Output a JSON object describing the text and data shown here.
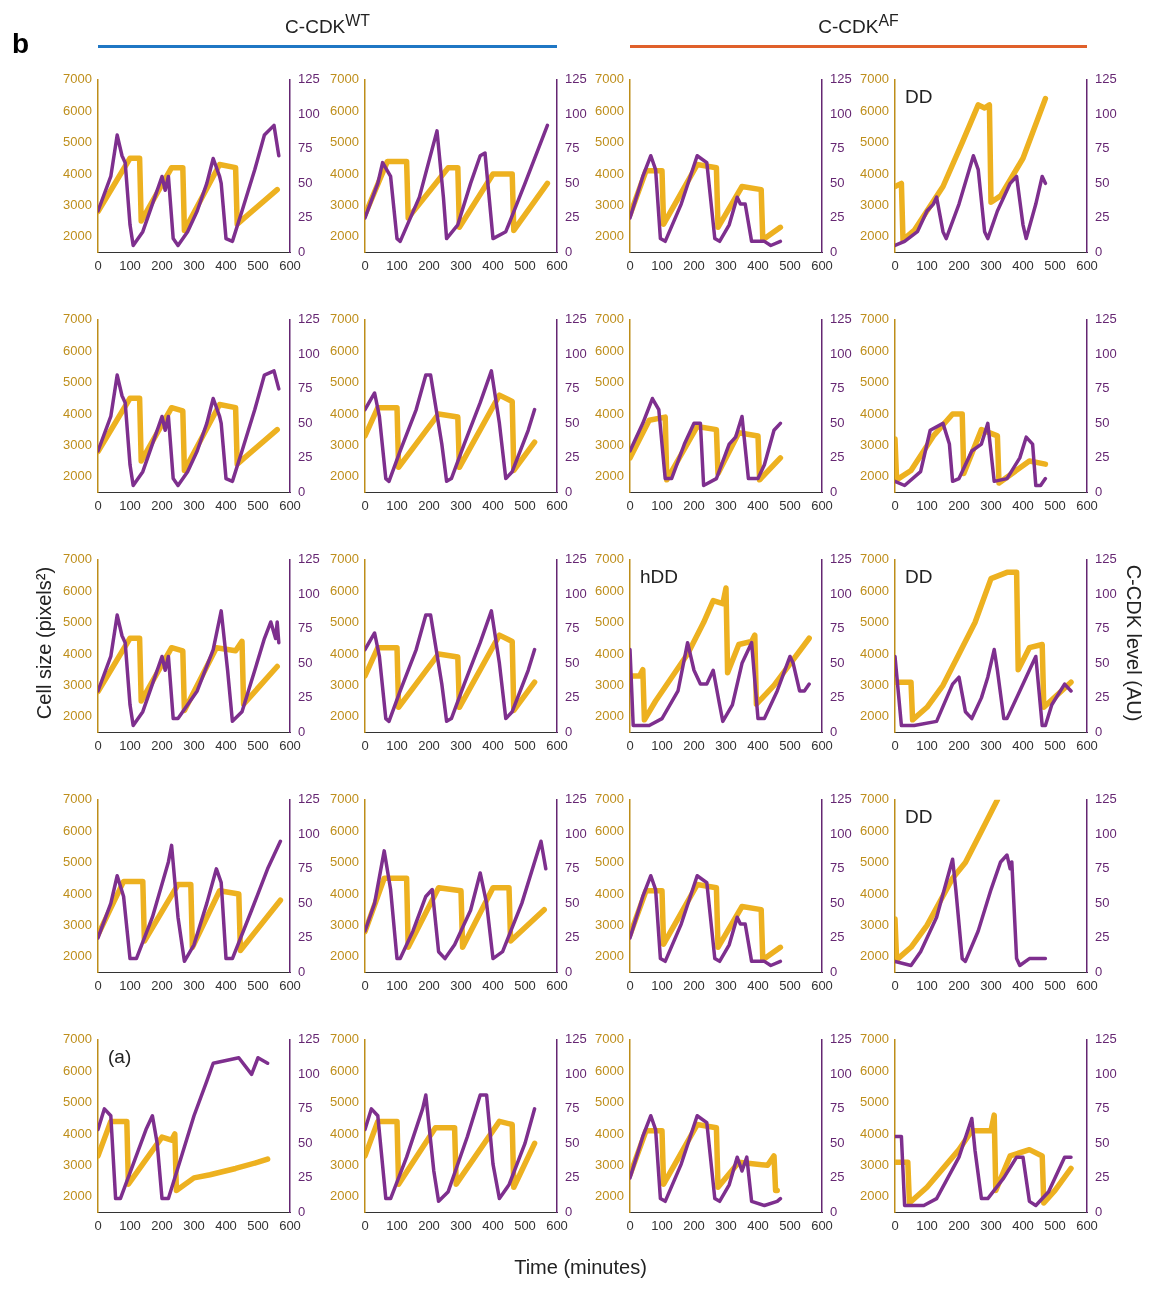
{
  "chart_data": [
    {
      "type": "line",
      "title": "C-CDK$^{WT}$",
      "annotations": [
        "b"
      ],
      "xlim": [
        0,
        600
      ],
      "xticks": [
        0,
        100,
        200,
        300,
        400,
        500,
        600
      ],
      "ylim": [
        1500,
        7000
      ],
      "yticks": [
        2000,
        3000,
        4000,
        5000,
        6000,
        7000
      ],
      "y2lim": [
        0,
        125
      ],
      "y2ticks": [
        0,
        25,
        50,
        75,
        100,
        125
      ],
      "marker": "none",
      "series": [
        {
          "color": "#edb120",
          "x": [
            0,
            100,
            130,
            135,
            230,
            265,
            270,
            380,
            430,
            435,
            560
          ],
          "values": [
            2800,
            4500,
            4500,
            2500,
            4200,
            4200,
            2200,
            4300,
            4200,
            2400,
            3500
          ]
        },
        {
          "color": "#7e2f8e",
          "axis": "y2",
          "x": [
            0,
            40,
            60,
            75,
            85,
            100,
            110,
            140,
            170,
            200,
            210,
            220,
            235,
            250,
            280,
            310,
            340,
            360,
            380,
            385,
            400,
            420,
            450,
            490,
            520,
            550,
            565
          ],
          "values": [
            30,
            55,
            85,
            70,
            65,
            20,
            5,
            15,
            35,
            55,
            45,
            55,
            10,
            5,
            15,
            30,
            50,
            68,
            55,
            50,
            10,
            8,
            30,
            60,
            85,
            92,
            70
          ]
        }
      ]
    },
    {
      "type": "line",
      "xlim": [
        0,
        600
      ],
      "xticks": [
        0,
        100,
        200,
        300,
        400,
        500,
        600
      ],
      "ylim": [
        1500,
        7000
      ],
      "yticks": [
        2000,
        3000,
        4000,
        5000,
        6000,
        7000
      ],
      "y2lim": [
        0,
        125
      ],
      "y2ticks": [
        0,
        25,
        50,
        75,
        100,
        125
      ],
      "marker": "none",
      "series": [
        {
          "color": "#edb120",
          "x": [
            0,
            70,
            130,
            135,
            260,
            290,
            295,
            400,
            460,
            465,
            570
          ],
          "values": [
            2700,
            4400,
            4400,
            2600,
            4200,
            4200,
            2300,
            4000,
            4000,
            2200,
            3700
          ]
        },
        {
          "color": "#7e2f8e",
          "axis": "y2",
          "x": [
            0,
            40,
            55,
            80,
            100,
            110,
            170,
            210,
            225,
            245,
            255,
            290,
            330,
            360,
            375,
            400,
            440,
            500,
            570
          ],
          "values": [
            25,
            50,
            65,
            55,
            10,
            8,
            40,
            75,
            88,
            40,
            10,
            20,
            50,
            70,
            72,
            10,
            15,
            50,
            92
          ]
        }
      ]
    },
    {
      "type": "line",
      "title": "C-CDK$^{AF}$",
      "xlim": [
        0,
        600
      ],
      "xticks": [
        0,
        100,
        200,
        300,
        400,
        500,
        600
      ],
      "ylim": [
        1500,
        7000
      ],
      "yticks": [
        2000,
        3000,
        4000,
        5000,
        6000,
        7000
      ],
      "y2lim": [
        0,
        125
      ],
      "y2ticks": [
        0,
        25,
        50,
        75,
        100,
        125
      ],
      "marker": "none",
      "series": [
        {
          "color": "#edb120",
          "x": [
            0,
            50,
            100,
            105,
            210,
            270,
            275,
            350,
            410,
            415,
            470
          ],
          "values": [
            2700,
            4100,
            4100,
            2400,
            4300,
            4200,
            2300,
            3600,
            3500,
            1900,
            2300
          ]
        },
        {
          "color": "#7e2f8e",
          "axis": "y2",
          "x": [
            0,
            40,
            65,
            80,
            95,
            110,
            160,
            210,
            240,
            265,
            280,
            310,
            335,
            345,
            360,
            380,
            420,
            440,
            470
          ],
          "values": [
            25,
            55,
            70,
            60,
            10,
            8,
            35,
            70,
            65,
            10,
            8,
            20,
            40,
            35,
            35,
            8,
            8,
            5,
            8
          ]
        }
      ]
    },
    {
      "type": "line",
      "annotations": [
        "DD"
      ],
      "xlim": [
        0,
        600
      ],
      "xticks": [
        0,
        100,
        200,
        300,
        400,
        500,
        600
      ],
      "ylim": [
        1500,
        7000
      ],
      "yticks": [
        2000,
        3000,
        4000,
        5000,
        6000,
        7000
      ],
      "y2lim": [
        0,
        125
      ],
      "y2ticks": [
        0,
        25,
        50,
        75,
        100,
        125
      ],
      "marker": "none",
      "series": [
        {
          "color": "#edb120",
          "x": [
            0,
            20,
            25,
            60,
            150,
            210,
            260,
            280,
            295,
            300,
            330,
            400,
            470
          ],
          "values": [
            3600,
            3700,
            1900,
            2200,
            3600,
            5000,
            6200,
            6100,
            6200,
            3100,
            3300,
            4500,
            6400
          ]
        },
        {
          "color": "#7e2f8e",
          "axis": "y2",
          "x": [
            0,
            30,
            70,
            100,
            120,
            130,
            150,
            160,
            200,
            245,
            260,
            280,
            290,
            320,
            360,
            380,
            400,
            410,
            440,
            460,
            470
          ],
          "values": [
            5,
            8,
            15,
            30,
            35,
            40,
            15,
            10,
            35,
            70,
            60,
            15,
            10,
            30,
            50,
            55,
            20,
            10,
            35,
            55,
            50
          ]
        }
      ]
    },
    {
      "type": "line",
      "xlim": [
        0,
        600
      ],
      "xticks": [
        0,
        100,
        200,
        300,
        400,
        500,
        600
      ],
      "ylim": [
        1500,
        7000
      ],
      "yticks": [
        2000,
        3000,
        4000,
        5000,
        6000,
        7000
      ],
      "y2lim": [
        0,
        125
      ],
      "y2ticks": [
        0,
        25,
        50,
        75,
        100,
        125
      ],
      "marker": "none",
      "series": [
        {
          "color": "#edb120",
          "x": [
            0,
            100,
            130,
            135,
            230,
            265,
            270,
            380,
            430,
            435,
            560
          ],
          "values": [
            2800,
            4500,
            4500,
            2500,
            4200,
            4100,
            2200,
            4300,
            4200,
            2400,
            3500
          ]
        },
        {
          "color": "#7e2f8e",
          "axis": "y2",
          "x": [
            0,
            40,
            60,
            75,
            85,
            100,
            110,
            140,
            170,
            200,
            210,
            220,
            235,
            250,
            280,
            310,
            340,
            360,
            380,
            385,
            400,
            420,
            450,
            490,
            520,
            550,
            565
          ],
          "values": [
            30,
            55,
            85,
            70,
            65,
            20,
            5,
            15,
            35,
            55,
            45,
            55,
            10,
            5,
            15,
            30,
            50,
            68,
            55,
            50,
            10,
            8,
            30,
            60,
            85,
            88,
            75
          ]
        }
      ]
    },
    {
      "type": "line",
      "xlim": [
        0,
        600
      ],
      "xticks": [
        0,
        100,
        200,
        300,
        400,
        500,
        600
      ],
      "ylim": [
        1500,
        7000
      ],
      "yticks": [
        2000,
        3000,
        4000,
        5000,
        6000,
        7000
      ],
      "y2lim": [
        0,
        125
      ],
      "y2ticks": [
        0,
        25,
        50,
        75,
        100,
        125
      ],
      "marker": "none",
      "series": [
        {
          "color": "#edb120",
          "x": [
            0,
            40,
            100,
            105,
            230,
            290,
            295,
            420,
            460,
            465,
            530
          ],
          "values": [
            3300,
            4200,
            4200,
            2300,
            4000,
            3900,
            2300,
            4600,
            4400,
            2200,
            3100
          ]
        },
        {
          "color": "#7e2f8e",
          "axis": "y2",
          "x": [
            0,
            30,
            45,
            65,
            75,
            110,
            160,
            190,
            205,
            240,
            255,
            270,
            310,
            360,
            395,
            420,
            440,
            460,
            510,
            530
          ],
          "values": [
            60,
            72,
            55,
            10,
            8,
            30,
            60,
            85,
            85,
            35,
            8,
            10,
            35,
            65,
            88,
            50,
            10,
            15,
            45,
            60
          ]
        }
      ]
    },
    {
      "type": "line",
      "xlim": [
        0,
        600
      ],
      "xticks": [
        0,
        100,
        200,
        300,
        400,
        500,
        600
      ],
      "ylim": [
        1500,
        7000
      ],
      "yticks": [
        2000,
        3000,
        4000,
        5000,
        6000,
        7000
      ],
      "y2lim": [
        0,
        125
      ],
      "y2ticks": [
        0,
        25,
        50,
        75,
        100,
        125
      ],
      "marker": "none",
      "series": [
        {
          "color": "#edb120",
          "x": [
            0,
            60,
            110,
            115,
            210,
            270,
            275,
            340,
            400,
            405,
            470
          ],
          "values": [
            2600,
            3800,
            3900,
            1900,
            3600,
            3500,
            2100,
            3400,
            3300,
            1900,
            2600
          ]
        },
        {
          "color": "#7e2f8e",
          "axis": "y2",
          "x": [
            0,
            40,
            70,
            90,
            110,
            130,
            170,
            200,
            220,
            230,
            270,
            310,
            330,
            350,
            370,
            400,
            420,
            450,
            470
          ],
          "values": [
            30,
            50,
            68,
            60,
            10,
            10,
            35,
            50,
            50,
            5,
            10,
            35,
            40,
            55,
            10,
            10,
            20,
            45,
            50
          ]
        }
      ]
    },
    {
      "type": "line",
      "xlim": [
        0,
        600
      ],
      "xticks": [
        0,
        100,
        200,
        300,
        400,
        500,
        600
      ],
      "ylim": [
        1500,
        7000
      ],
      "yticks": [
        2000,
        3000,
        4000,
        5000,
        6000,
        7000
      ],
      "y2lim": [
        0,
        125
      ],
      "y2ticks": [
        0,
        25,
        50,
        75,
        100,
        125
      ],
      "marker": "none",
      "series": [
        {
          "color": "#edb120",
          "x": [
            0,
            5,
            50,
            120,
            180,
            210,
            215,
            270,
            320,
            325,
            420,
            470
          ],
          "values": [
            3200,
            1900,
            2200,
            3300,
            4000,
            4000,
            2100,
            3500,
            3300,
            1800,
            2500,
            2400
          ]
        },
        {
          "color": "#7e2f8e",
          "axis": "y2",
          "x": [
            0,
            30,
            80,
            110,
            150,
            170,
            180,
            200,
            240,
            270,
            290,
            310,
            350,
            390,
            410,
            430,
            440,
            455,
            470
          ],
          "values": [
            8,
            5,
            15,
            45,
            50,
            35,
            8,
            10,
            30,
            35,
            50,
            8,
            10,
            25,
            40,
            35,
            5,
            5,
            10
          ]
        }
      ]
    },
    {
      "type": "line",
      "ylabel": "Cell size (pixels²)",
      "xlim": [
        0,
        600
      ],
      "xticks": [
        0,
        100,
        200,
        300,
        400,
        500,
        600
      ],
      "ylim": [
        1500,
        7000
      ],
      "yticks": [
        2000,
        3000,
        4000,
        5000,
        6000,
        7000
      ],
      "y2lim": [
        0,
        125
      ],
      "y2ticks": [
        0,
        25,
        50,
        75,
        100,
        125
      ],
      "marker": "none",
      "series": [
        {
          "color": "#edb120",
          "x": [
            0,
            100,
            130,
            135,
            230,
            265,
            270,
            370,
            430,
            450,
            455,
            560
          ],
          "values": [
            2800,
            4500,
            4500,
            2500,
            4200,
            4100,
            2200,
            4200,
            4100,
            4400,
            2400,
            3600
          ]
        },
        {
          "color": "#7e2f8e",
          "axis": "y2",
          "x": [
            0,
            40,
            60,
            75,
            85,
            100,
            110,
            140,
            170,
            200,
            210,
            220,
            235,
            250,
            310,
            360,
            385,
            405,
            420,
            450,
            490,
            520,
            540,
            555,
            560,
            565
          ],
          "values": [
            30,
            55,
            85,
            70,
            65,
            20,
            5,
            15,
            35,
            55,
            45,
            55,
            10,
            10,
            30,
            60,
            88,
            45,
            8,
            15,
            45,
            68,
            80,
            68,
            80,
            65
          ]
        }
      ]
    },
    {
      "type": "line",
      "xlim": [
        0,
        600
      ],
      "xticks": [
        0,
        100,
        200,
        300,
        400,
        500,
        600
      ],
      "ylim": [
        1500,
        7000
      ],
      "yticks": [
        2000,
        3000,
        4000,
        5000,
        6000,
        7000
      ],
      "y2lim": [
        0,
        125
      ],
      "y2ticks": [
        0,
        25,
        50,
        75,
        100,
        125
      ],
      "marker": "none",
      "series": [
        {
          "color": "#edb120",
          "x": [
            0,
            40,
            100,
            105,
            230,
            290,
            295,
            420,
            460,
            465,
            530
          ],
          "values": [
            3300,
            4200,
            4200,
            2300,
            4000,
            3900,
            2300,
            4600,
            4400,
            2200,
            3100
          ]
        },
        {
          "color": "#7e2f8e",
          "axis": "y2",
          "x": [
            0,
            30,
            45,
            65,
            75,
            110,
            160,
            190,
            205,
            240,
            255,
            270,
            310,
            360,
            395,
            420,
            440,
            460,
            510,
            530
          ],
          "values": [
            60,
            72,
            55,
            10,
            8,
            30,
            60,
            85,
            85,
            35,
            8,
            10,
            35,
            65,
            88,
            50,
            10,
            15,
            45,
            60
          ]
        }
      ]
    },
    {
      "type": "line",
      "annotations": [
        "hDD"
      ],
      "xlim": [
        0,
        600
      ],
      "xticks": [
        0,
        100,
        200,
        300,
        400,
        500,
        600
      ],
      "ylim": [
        1500,
        7000
      ],
      "yticks": [
        2000,
        3000,
        4000,
        5000,
        6000,
        7000
      ],
      "y2lim": [
        0,
        125
      ],
      "y2ticks": [
        0,
        25,
        50,
        75,
        100,
        125
      ],
      "marker": "none",
      "series": [
        {
          "color": "#edb120",
          "x": [
            0,
            30,
            40,
            45,
            80,
            180,
            230,
            260,
            290,
            300,
            305,
            340,
            380,
            390,
            395,
            450,
            560
          ],
          "values": [
            3300,
            3300,
            3500,
            1900,
            2500,
            4000,
            5000,
            5700,
            5600,
            6100,
            3400,
            4300,
            4400,
            4600,
            2400,
            3000,
            4500
          ]
        },
        {
          "color": "#7e2f8e",
          "axis": "y2",
          "x": [
            0,
            10,
            60,
            100,
            150,
            180,
            200,
            220,
            240,
            260,
            280,
            290,
            320,
            350,
            380,
            400,
            420,
            460,
            500,
            510,
            530,
            545,
            560
          ],
          "values": [
            60,
            5,
            5,
            10,
            30,
            65,
            45,
            35,
            35,
            45,
            20,
            8,
            20,
            50,
            65,
            10,
            10,
            30,
            55,
            50,
            30,
            30,
            35
          ]
        }
      ]
    },
    {
      "type": "line",
      "annotations": [
        "DD"
      ],
      "y2label": "C-CDK level (AU)",
      "xlim": [
        0,
        600
      ],
      "xticks": [
        0,
        100,
        200,
        300,
        400,
        500,
        600
      ],
      "ylim": [
        1500,
        7000
      ],
      "yticks": [
        2000,
        3000,
        4000,
        5000,
        6000,
        7000
      ],
      "y2lim": [
        0,
        125
      ],
      "y2ticks": [
        0,
        25,
        50,
        75,
        100,
        125
      ],
      "marker": "none",
      "series": [
        {
          "color": "#edb120",
          "x": [
            0,
            50,
            55,
            100,
            150,
            200,
            250,
            300,
            350,
            380,
            385,
            420,
            460,
            465,
            550
          ],
          "values": [
            3100,
            3100,
            1900,
            2300,
            3000,
            4000,
            5000,
            6400,
            6600,
            6600,
            3500,
            4200,
            4300,
            2300,
            3100
          ]
        },
        {
          "color": "#7e2f8e",
          "axis": "y2",
          "x": [
            0,
            20,
            60,
            130,
            180,
            200,
            220,
            240,
            270,
            290,
            310,
            320,
            340,
            350,
            390,
            430,
            440,
            460,
            470,
            490,
            530,
            550
          ],
          "values": [
            55,
            5,
            5,
            8,
            35,
            40,
            15,
            10,
            25,
            40,
            60,
            45,
            10,
            10,
            30,
            50,
            55,
            5,
            5,
            20,
            35,
            30
          ]
        }
      ]
    },
    {
      "type": "line",
      "xlim": [
        0,
        600
      ],
      "xticks": [
        0,
        100,
        200,
        300,
        400,
        500,
        600
      ],
      "ylim": [
        1500,
        7000
      ],
      "yticks": [
        2000,
        3000,
        4000,
        5000,
        6000,
        7000
      ],
      "y2lim": [
        0,
        125
      ],
      "y2ticks": [
        0,
        25,
        50,
        75,
        100,
        125
      ],
      "marker": "none",
      "series": [
        {
          "color": "#edb120",
          "x": [
            0,
            80,
            140,
            145,
            250,
            290,
            295,
            380,
            440,
            445,
            570
          ],
          "values": [
            2700,
            4400,
            4400,
            2500,
            4300,
            4300,
            2300,
            4100,
            4000,
            2200,
            3800
          ]
        },
        {
          "color": "#7e2f8e",
          "axis": "y2",
          "x": [
            0,
            40,
            60,
            80,
            100,
            120,
            170,
            220,
            230,
            250,
            270,
            300,
            340,
            370,
            385,
            400,
            420,
            480,
            530,
            570
          ],
          "values": [
            25,
            50,
            70,
            55,
            10,
            10,
            40,
            80,
            92,
            40,
            8,
            20,
            50,
            75,
            65,
            10,
            10,
            45,
            75,
            95
          ]
        }
      ]
    },
    {
      "type": "line",
      "xlim": [
        0,
        600
      ],
      "xticks": [
        0,
        100,
        200,
        300,
        400,
        500,
        600
      ],
      "ylim": [
        1500,
        7000
      ],
      "yticks": [
        2000,
        3000,
        4000,
        5000,
        6000,
        7000
      ],
      "y2lim": [
        0,
        125
      ],
      "y2ticks": [
        0,
        25,
        50,
        75,
        100,
        125
      ],
      "marker": "none",
      "series": [
        {
          "color": "#edb120",
          "x": [
            0,
            60,
            130,
            135,
            230,
            300,
            305,
            400,
            450,
            455,
            560
          ],
          "values": [
            2800,
            4500,
            4500,
            2300,
            4200,
            4100,
            2300,
            4200,
            4200,
            2500,
            3500
          ]
        },
        {
          "color": "#7e2f8e",
          "axis": "y2",
          "x": [
            0,
            30,
            60,
            80,
            100,
            110,
            150,
            190,
            210,
            230,
            250,
            280,
            330,
            360,
            380,
            400,
            430,
            490,
            550,
            565
          ],
          "values": [
            30,
            50,
            88,
            60,
            10,
            10,
            30,
            55,
            60,
            15,
            10,
            20,
            45,
            72,
            50,
            10,
            15,
            50,
            95,
            75
          ]
        }
      ]
    },
    {
      "type": "line",
      "xlim": [
        0,
        600
      ],
      "xticks": [
        0,
        100,
        200,
        300,
        400,
        500,
        600
      ],
      "ylim": [
        1500,
        7000
      ],
      "yticks": [
        2000,
        3000,
        4000,
        5000,
        6000,
        7000
      ],
      "y2lim": [
        0,
        125
      ],
      "y2ticks": [
        0,
        25,
        50,
        75,
        100,
        125
      ],
      "marker": "none",
      "series": [
        {
          "color": "#edb120",
          "x": [
            0,
            50,
            100,
            105,
            210,
            270,
            275,
            350,
            410,
            415,
            470
          ],
          "values": [
            2700,
            4100,
            4100,
            2400,
            4300,
            4200,
            2300,
            3600,
            3500,
            1900,
            2300
          ]
        },
        {
          "color": "#7e2f8e",
          "axis": "y2",
          "x": [
            0,
            40,
            65,
            80,
            95,
            110,
            160,
            210,
            240,
            265,
            280,
            310,
            335,
            345,
            360,
            380,
            420,
            440,
            470
          ],
          "values": [
            25,
            55,
            70,
            60,
            10,
            8,
            35,
            70,
            65,
            10,
            8,
            20,
            40,
            35,
            35,
            8,
            8,
            5,
            8
          ]
        }
      ]
    },
    {
      "type": "line",
      "annotations": [
        "DD"
      ],
      "xlim": [
        0,
        600
      ],
      "xticks": [
        0,
        100,
        200,
        300,
        400,
        500,
        600
      ],
      "ylim": [
        1500,
        7000
      ],
      "yticks": [
        2000,
        3000,
        4000,
        5000,
        6000,
        7000
      ],
      "y2lim": [
        0,
        125
      ],
      "y2ticks": [
        0,
        25,
        50,
        75,
        100,
        125
      ],
      "marker": "none",
      "series": [
        {
          "color": "#edb120",
          "x": [
            0,
            5,
            50,
            100,
            180,
            220,
            270,
            320
          ],
          "values": [
            3200,
            1900,
            2300,
            3000,
            4500,
            5000,
            6000,
            7000
          ]
        },
        {
          "color": "#7e2f8e",
          "axis": "y2",
          "x": [
            0,
            50,
            80,
            130,
            180,
            190,
            210,
            220,
            260,
            300,
            330,
            350,
            360,
            365,
            380,
            390,
            420,
            450,
            470
          ],
          "values": [
            8,
            5,
            15,
            40,
            82,
            60,
            10,
            8,
            30,
            60,
            80,
            85,
            75,
            80,
            10,
            5,
            10,
            10,
            10
          ]
        }
      ]
    },
    {
      "type": "line",
      "annotations": [
        "(a)"
      ],
      "xlim": [
        0,
        600
      ],
      "xticks": [
        0,
        100,
        200,
        300,
        400,
        500,
        600
      ],
      "ylim": [
        1500,
        7000
      ],
      "yticks": [
        2000,
        3000,
        4000,
        5000,
        6000,
        7000
      ],
      "y2lim": [
        0,
        125
      ],
      "y2ticks": [
        0,
        25,
        50,
        75,
        100,
        125
      ],
      "marker": "none",
      "series": [
        {
          "color": "#edb120",
          "x": [
            0,
            40,
            90,
            95,
            200,
            230,
            240,
            245,
            300,
            350,
            430,
            500,
            530
          ],
          "values": [
            3300,
            4400,
            4400,
            2400,
            3900,
            3800,
            4000,
            2200,
            2600,
            2700,
            2900,
            3100,
            3200
          ]
        },
        {
          "color": "#7e2f8e",
          "axis": "y2",
          "x": [
            0,
            20,
            40,
            55,
            70,
            110,
            150,
            170,
            185,
            200,
            220,
            260,
            300,
            340,
            360,
            400,
            440,
            480,
            500,
            530
          ],
          "values": [
            60,
            75,
            70,
            10,
            10,
            35,
            60,
            70,
            50,
            10,
            10,
            40,
            70,
            95,
            108,
            110,
            112,
            100,
            112,
            108
          ]
        }
      ]
    },
    {
      "type": "line",
      "xlabel": "Time (minutes)",
      "xlim": [
        0,
        600
      ],
      "xticks": [
        0,
        100,
        200,
        300,
        400,
        500,
        600
      ],
      "ylim": [
        1500,
        7000
      ],
      "yticks": [
        2000,
        3000,
        4000,
        5000,
        6000,
        7000
      ],
      "y2lim": [
        0,
        125
      ],
      "y2ticks": [
        0,
        25,
        50,
        75,
        100,
        125
      ],
      "marker": "none",
      "series": [
        {
          "color": "#edb120",
          "x": [
            0,
            40,
            100,
            105,
            220,
            280,
            285,
            420,
            460,
            465,
            530
          ],
          "values": [
            3300,
            4400,
            4400,
            2400,
            4200,
            4200,
            2400,
            4400,
            4300,
            2300,
            3700
          ]
        },
        {
          "color": "#7e2f8e",
          "axis": "y2",
          "x": [
            0,
            20,
            40,
            65,
            80,
            130,
            180,
            190,
            215,
            230,
            260,
            320,
            360,
            380,
            400,
            420,
            450,
            500,
            530
          ],
          "values": [
            60,
            75,
            70,
            10,
            10,
            40,
            75,
            85,
            30,
            8,
            15,
            55,
            85,
            85,
            35,
            10,
            20,
            50,
            75
          ]
        }
      ]
    },
    {
      "type": "line",
      "xlim": [
        0,
        600
      ],
      "xticks": [
        0,
        100,
        200,
        300,
        400,
        500,
        600
      ],
      "ylim": [
        1500,
        7000
      ],
      "yticks": [
        2000,
        3000,
        4000,
        5000,
        6000,
        7000
      ],
      "y2lim": [
        0,
        125
      ],
      "y2ticks": [
        0,
        25,
        50,
        75,
        100,
        125
      ],
      "marker": "none",
      "series": [
        {
          "color": "#edb120",
          "x": [
            0,
            50,
            100,
            105,
            210,
            270,
            275,
            340,
            430,
            450,
            455,
            460
          ],
          "values": [
            2700,
            4100,
            4100,
            2400,
            4300,
            4200,
            2300,
            3100,
            3000,
            3300,
            2200,
            2200
          ]
        },
        {
          "color": "#7e2f8e",
          "axis": "y2",
          "x": [
            0,
            40,
            65,
            80,
            95,
            110,
            160,
            210,
            240,
            265,
            280,
            310,
            335,
            350,
            365,
            380,
            420,
            460,
            470
          ],
          "values": [
            25,
            55,
            70,
            60,
            10,
            8,
            35,
            70,
            65,
            10,
            8,
            20,
            40,
            30,
            40,
            8,
            5,
            8,
            10
          ]
        }
      ]
    },
    {
      "type": "line",
      "xlim": [
        0,
        600
      ],
      "xticks": [
        0,
        100,
        200,
        300,
        400,
        500,
        600
      ],
      "ylim": [
        1500,
        7000
      ],
      "yticks": [
        2000,
        3000,
        4000,
        5000,
        6000,
        7000
      ],
      "y2lim": [
        0,
        125
      ],
      "y2ticks": [
        0,
        25,
        50,
        75,
        100,
        125
      ],
      "marker": "none",
      "series": [
        {
          "color": "#edb120",
          "x": [
            0,
            40,
            45,
            100,
            200,
            240,
            300,
            310,
            315,
            360,
            420,
            460,
            465,
            500,
            550
          ],
          "values": [
            3100,
            3100,
            1800,
            2300,
            3500,
            4100,
            4100,
            4600,
            2200,
            3300,
            3500,
            3300,
            1800,
            2200,
            2900
          ]
        },
        {
          "color": "#7e2f8e",
          "axis": "y2",
          "x": [
            0,
            20,
            30,
            90,
            130,
            200,
            240,
            250,
            270,
            290,
            340,
            380,
            400,
            420,
            440,
            480,
            530,
            550
          ],
          "values": [
            55,
            55,
            5,
            5,
            10,
            40,
            68,
            45,
            10,
            10,
            25,
            40,
            40,
            8,
            5,
            15,
            40,
            40
          ]
        }
      ]
    }
  ]
}
